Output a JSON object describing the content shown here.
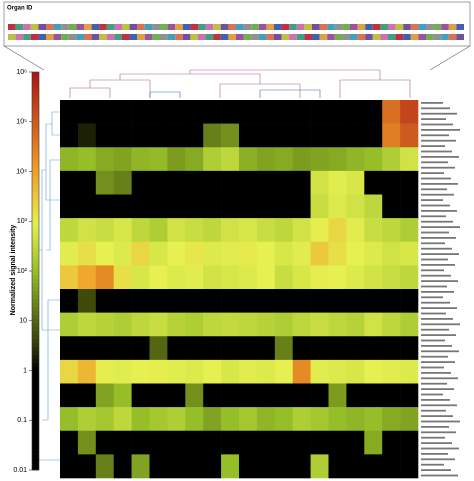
{
  "chart_data": {
    "type": "heatmap",
    "legend_title": "Organ ID",
    "color_axis_label": "Normalized signal intensity",
    "log_scale": true,
    "clim": [
      0.01,
      1000000
    ],
    "cticks": [
      {
        "value": 1000000,
        "label": "10⁶"
      },
      {
        "value": 100000,
        "label": "10⁵"
      },
      {
        "value": 10000,
        "label": "10⁴"
      },
      {
        "value": 1000,
        "label": "10³"
      },
      {
        "value": 100,
        "label": "10²"
      },
      10,
      1,
      0.1,
      0.01
    ],
    "matrix": [
      [
        0.05,
        0.05,
        0.1,
        0.05,
        0.05,
        0.1,
        0.05,
        0.05,
        0.05,
        0.05,
        0.1,
        0.05,
        0.05,
        0.05,
        0.05,
        0.1,
        0.05,
        0.05,
        50000,
        200000
      ],
      [
        0.5,
        2,
        0.5,
        0.5,
        0.5,
        1,
        0.5,
        0.5,
        20,
        30,
        0.5,
        0.5,
        0.5,
        0.5,
        0.5,
        0.5,
        0.5,
        1,
        30000,
        100000
      ],
      [
        80,
        100,
        60,
        50,
        80,
        90,
        40,
        60,
        200,
        300,
        70,
        50,
        60,
        40,
        50,
        60,
        80,
        100,
        200,
        500
      ],
      [
        0.1,
        0.1,
        30,
        20,
        0.1,
        0.1,
        0.1,
        0.1,
        0.1,
        0.1,
        0.1,
        0.1,
        0.1,
        0.1,
        500,
        800,
        600,
        0.1,
        0.1,
        0.1
      ],
      [
        0.1,
        0.1,
        0.1,
        0.1,
        0.1,
        0.1,
        0.1,
        0.1,
        0.1,
        0.1,
        0.1,
        0.1,
        0.1,
        0.1,
        400,
        700,
        500,
        300,
        0.1,
        0.1
      ],
      [
        300,
        500,
        400,
        600,
        300,
        200,
        500,
        400,
        300,
        500,
        600,
        400,
        300,
        500,
        1000,
        2000,
        800,
        400,
        300,
        200
      ],
      [
        800,
        1500,
        900,
        700,
        2000,
        600,
        900,
        1200,
        700,
        800,
        1100,
        900,
        600,
        800,
        3000,
        1500,
        900,
        700,
        500,
        600
      ],
      [
        3000,
        8000,
        20000,
        1500,
        600,
        900,
        700,
        800,
        500,
        600,
        700,
        900,
        400,
        600,
        1000,
        900,
        700,
        500,
        400,
        300
      ],
      [
        0.1,
        5,
        0.1,
        0.1,
        0.1,
        0.1,
        0.1,
        0.1,
        0.1,
        0.1,
        0.1,
        0.1,
        0.1,
        0.1,
        0.1,
        0.1,
        0.1,
        0.1,
        0.1,
        0.1
      ],
      [
        200,
        300,
        250,
        200,
        300,
        400,
        250,
        200,
        300,
        350,
        300,
        250,
        200,
        300,
        400,
        300,
        250,
        500,
        300,
        200
      ],
      [
        0.1,
        0.1,
        0.1,
        0.1,
        0.1,
        10,
        0.1,
        0.1,
        0.1,
        0.1,
        0.1,
        0.1,
        20,
        0.1,
        0.1,
        0.1,
        0.1,
        0.1,
        0.1,
        0.1
      ],
      [
        2000,
        5000,
        1000,
        800,
        900,
        1000,
        800,
        700,
        900,
        600,
        800,
        700,
        900,
        20000,
        800,
        700,
        600,
        900,
        800,
        700
      ],
      [
        0.1,
        0.1,
        50,
        100,
        0.1,
        0.1,
        0.1,
        30,
        0.1,
        0.1,
        0.1,
        0.1,
        0.1,
        0.1,
        0.1,
        40,
        0.1,
        0.1,
        0.1,
        0.1
      ],
      [
        100,
        200,
        150,
        300,
        100,
        150,
        200,
        100,
        50,
        100,
        150,
        80,
        100,
        200,
        150,
        100,
        80,
        100,
        60,
        50
      ],
      [
        0.1,
        30,
        0.1,
        0.1,
        0.1,
        0.1,
        0.1,
        0.1,
        0.1,
        0.1,
        0.1,
        0.1,
        0.1,
        0.1,
        0.1,
        0.1,
        0.1,
        60,
        0.1,
        0.1
      ],
      [
        0.1,
        0.1,
        20,
        0.1,
        50,
        0.1,
        0.1,
        0.1,
        0.1,
        100,
        0.1,
        0.1,
        0.1,
        0.1,
        200,
        0.1,
        0.1,
        0.1,
        0.1,
        0.1
      ]
    ]
  }
}
